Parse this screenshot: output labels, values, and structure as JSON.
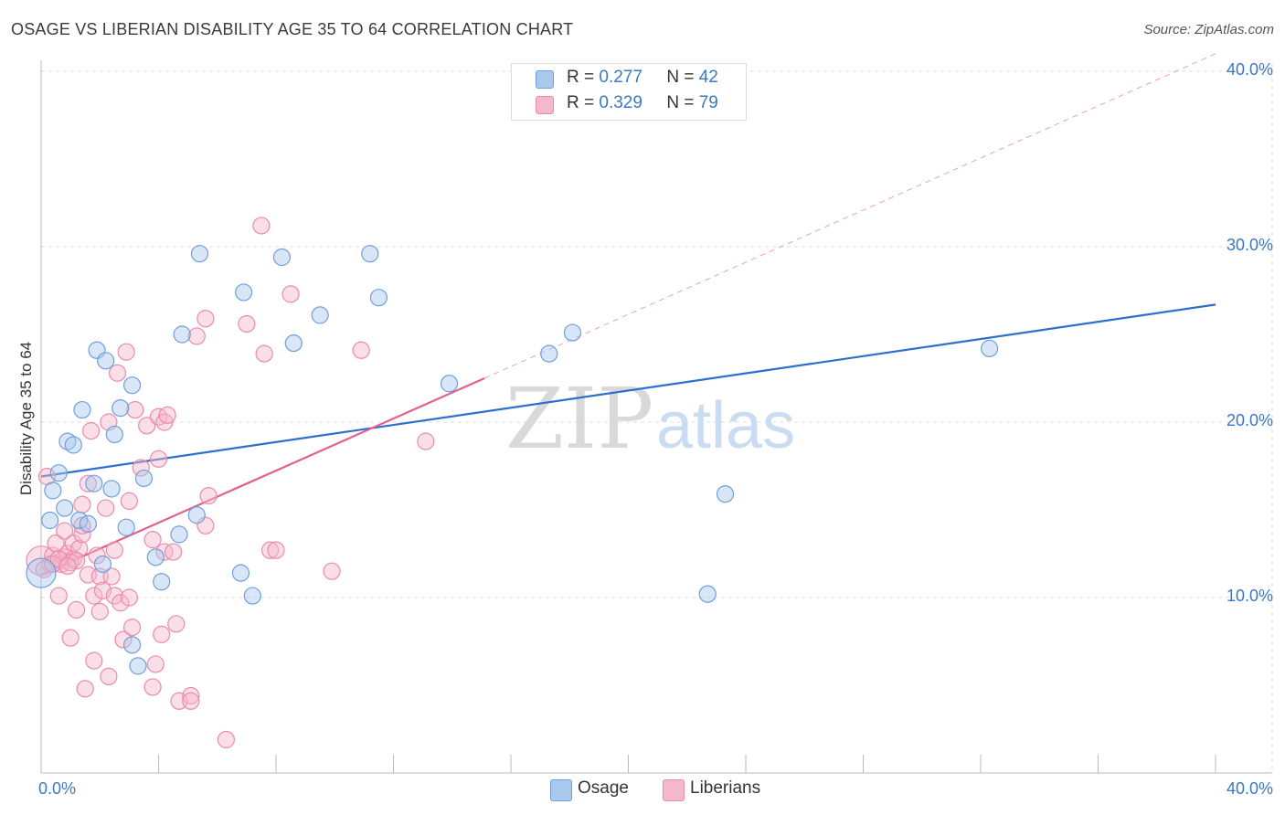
{
  "header": {
    "title": "OSAGE VS LIBERIAN DISABILITY AGE 35 TO 64 CORRELATION CHART",
    "source": "Source: ZipAtlas.com"
  },
  "watermark": {
    "zip": "ZIP",
    "atlas": "atlas"
  },
  "legend": {
    "r_label": "R =",
    "n_label": "N =",
    "rows": [
      {
        "name": "Osage",
        "r": "0.277",
        "n": "42"
      },
      {
        "name": "Liberians",
        "r": "0.329",
        "n": "79"
      }
    ]
  },
  "colors": {
    "osage_fill": "#a9c8ee",
    "osage_stroke": "#6f9fdc",
    "osage_line": "#2d6fcc",
    "liberian_fill": "#f5b8cb",
    "liberian_stroke": "#ec8aaa",
    "liberian_line": "#e35f8e",
    "grid": "#dddddd",
    "axis_text": "#3b78c4"
  },
  "chart_data": {
    "type": "scatter",
    "title": "OSAGE VS LIBERIAN DISABILITY AGE 35 TO 64 CORRELATION CHART",
    "xlabel": "",
    "ylabel": "Disability Age 35 to 64",
    "xlim": [
      0,
      40
    ],
    "ylim": [
      0,
      40
    ],
    "x_tick_labels": [
      "0.0%",
      "40.0%"
    ],
    "y_ticks": [
      10,
      20,
      30,
      40
    ],
    "y_tick_labels": [
      "10.0%",
      "20.0%",
      "30.0%",
      "40.0%"
    ],
    "series": [
      {
        "name": "Osage",
        "r": 0.277,
        "n": 42,
        "trend": {
          "x": [
            0,
            40
          ],
          "y": [
            16.9,
            26.7
          ],
          "dashed_extension": false
        },
        "points": [
          {
            "x": 0.0,
            "y": 11.4,
            "big": true
          },
          {
            "x": 0.3,
            "y": 14.4
          },
          {
            "x": 0.4,
            "y": 16.1
          },
          {
            "x": 0.6,
            "y": 17.1
          },
          {
            "x": 0.8,
            "y": 15.1
          },
          {
            "x": 0.9,
            "y": 18.9
          },
          {
            "x": 1.1,
            "y": 18.7
          },
          {
            "x": 1.3,
            "y": 14.4
          },
          {
            "x": 1.4,
            "y": 20.7
          },
          {
            "x": 1.6,
            "y": 14.2
          },
          {
            "x": 1.8,
            "y": 16.5
          },
          {
            "x": 1.9,
            "y": 24.1
          },
          {
            "x": 2.1,
            "y": 11.9
          },
          {
            "x": 2.2,
            "y": 23.5
          },
          {
            "x": 2.4,
            "y": 16.2
          },
          {
            "x": 2.5,
            "y": 19.3
          },
          {
            "x": 2.7,
            "y": 20.8
          },
          {
            "x": 2.9,
            "y": 14.0
          },
          {
            "x": 3.1,
            "y": 22.1
          },
          {
            "x": 3.1,
            "y": 7.3
          },
          {
            "x": 3.3,
            "y": 6.1
          },
          {
            "x": 3.5,
            "y": 16.8
          },
          {
            "x": 3.9,
            "y": 12.3
          },
          {
            "x": 4.1,
            "y": 10.9
          },
          {
            "x": 4.7,
            "y": 13.6
          },
          {
            "x": 4.8,
            "y": 25.0
          },
          {
            "x": 5.3,
            "y": 14.7
          },
          {
            "x": 5.4,
            "y": 29.6
          },
          {
            "x": 6.8,
            "y": 11.4
          },
          {
            "x": 6.9,
            "y": 27.4
          },
          {
            "x": 7.2,
            "y": 10.1
          },
          {
            "x": 8.2,
            "y": 29.4
          },
          {
            "x": 8.6,
            "y": 24.5
          },
          {
            "x": 9.5,
            "y": 26.1
          },
          {
            "x": 11.2,
            "y": 29.6
          },
          {
            "x": 11.5,
            "y": 27.1
          },
          {
            "x": 13.9,
            "y": 22.2
          },
          {
            "x": 17.3,
            "y": 23.9
          },
          {
            "x": 18.1,
            "y": 25.1
          },
          {
            "x": 22.7,
            "y": 10.2
          },
          {
            "x": 23.3,
            "y": 15.9
          },
          {
            "x": 32.3,
            "y": 24.2
          }
        ]
      },
      {
        "name": "Liberians",
        "r": 0.329,
        "n": 79,
        "trend": {
          "x": [
            0,
            15.1
          ],
          "y": [
            11.3,
            22.5
          ],
          "dashed_extension": true,
          "dashed_to": [
            40,
            41.0
          ]
        },
        "points": [
          {
            "x": 0.0,
            "y": 12.1,
            "big": true
          },
          {
            "x": 0.2,
            "y": 16.9
          },
          {
            "x": 0.3,
            "y": 11.9
          },
          {
            "x": 0.4,
            "y": 12.4
          },
          {
            "x": 0.5,
            "y": 13.1
          },
          {
            "x": 0.6,
            "y": 10.1
          },
          {
            "x": 0.7,
            "y": 12.1
          },
          {
            "x": 0.7,
            "y": 11.9
          },
          {
            "x": 0.8,
            "y": 13.8
          },
          {
            "x": 0.8,
            "y": 12.3
          },
          {
            "x": 0.9,
            "y": 12.5
          },
          {
            "x": 1.0,
            "y": 7.7
          },
          {
            "x": 1.1,
            "y": 13.1
          },
          {
            "x": 1.1,
            "y": 12.2
          },
          {
            "x": 1.2,
            "y": 9.3
          },
          {
            "x": 1.3,
            "y": 12.8
          },
          {
            "x": 1.4,
            "y": 13.6
          },
          {
            "x": 1.4,
            "y": 14.1
          },
          {
            "x": 1.4,
            "y": 15.3
          },
          {
            "x": 1.5,
            "y": 4.8
          },
          {
            "x": 1.6,
            "y": 11.3
          },
          {
            "x": 1.6,
            "y": 16.5
          },
          {
            "x": 1.7,
            "y": 19.5
          },
          {
            "x": 1.8,
            "y": 10.1
          },
          {
            "x": 1.8,
            "y": 6.4
          },
          {
            "x": 1.9,
            "y": 12.4
          },
          {
            "x": 2.0,
            "y": 11.2
          },
          {
            "x": 2.0,
            "y": 9.2
          },
          {
            "x": 2.1,
            "y": 10.4
          },
          {
            "x": 2.2,
            "y": 15.1
          },
          {
            "x": 2.3,
            "y": 20.0
          },
          {
            "x": 2.3,
            "y": 5.5
          },
          {
            "x": 2.4,
            "y": 11.2
          },
          {
            "x": 2.5,
            "y": 10.1
          },
          {
            "x": 2.5,
            "y": 12.7
          },
          {
            "x": 2.6,
            "y": 22.8
          },
          {
            "x": 2.7,
            "y": 9.7
          },
          {
            "x": 2.8,
            "y": 7.6
          },
          {
            "x": 2.9,
            "y": 24.0
          },
          {
            "x": 3.0,
            "y": 15.5
          },
          {
            "x": 3.0,
            "y": 10.0
          },
          {
            "x": 3.1,
            "y": 8.3
          },
          {
            "x": 3.2,
            "y": 20.7
          },
          {
            "x": 3.4,
            "y": 17.4
          },
          {
            "x": 3.6,
            "y": 19.8
          },
          {
            "x": 3.8,
            "y": 13.3
          },
          {
            "x": 3.8,
            "y": 4.9
          },
          {
            "x": 3.9,
            "y": 6.2
          },
          {
            "x": 4.0,
            "y": 20.3
          },
          {
            "x": 4.0,
            "y": 17.9
          },
          {
            "x": 4.1,
            "y": 7.9
          },
          {
            "x": 4.2,
            "y": 12.6
          },
          {
            "x": 4.2,
            "y": 20.0
          },
          {
            "x": 4.3,
            "y": 20.4
          },
          {
            "x": 4.5,
            "y": 12.6
          },
          {
            "x": 4.6,
            "y": 8.5
          },
          {
            "x": 4.7,
            "y": 4.1
          },
          {
            "x": 5.1,
            "y": 4.4
          },
          {
            "x": 5.1,
            "y": 4.1
          },
          {
            "x": 5.3,
            "y": 24.9
          },
          {
            "x": 5.6,
            "y": 14.1
          },
          {
            "x": 5.6,
            "y": 25.9
          },
          {
            "x": 5.7,
            "y": 15.8
          },
          {
            "x": 6.3,
            "y": 1.9
          },
          {
            "x": 7.0,
            "y": 25.6
          },
          {
            "x": 7.5,
            "y": 31.2
          },
          {
            "x": 7.6,
            "y": 23.9
          },
          {
            "x": 7.8,
            "y": 12.7
          },
          {
            "x": 8.0,
            "y": 12.7
          },
          {
            "x": 8.5,
            "y": 27.3
          },
          {
            "x": 9.9,
            "y": 11.5
          },
          {
            "x": 10.9,
            "y": 24.1
          },
          {
            "x": 13.1,
            "y": 18.9
          },
          {
            "x": 0.1,
            "y": 11.6
          },
          {
            "x": 0.4,
            "y": 11.9
          },
          {
            "x": 1.0,
            "y": 12.0
          },
          {
            "x": 1.2,
            "y": 12.1
          },
          {
            "x": 0.6,
            "y": 12.2
          },
          {
            "x": 0.9,
            "y": 11.8
          }
        ]
      }
    ]
  }
}
